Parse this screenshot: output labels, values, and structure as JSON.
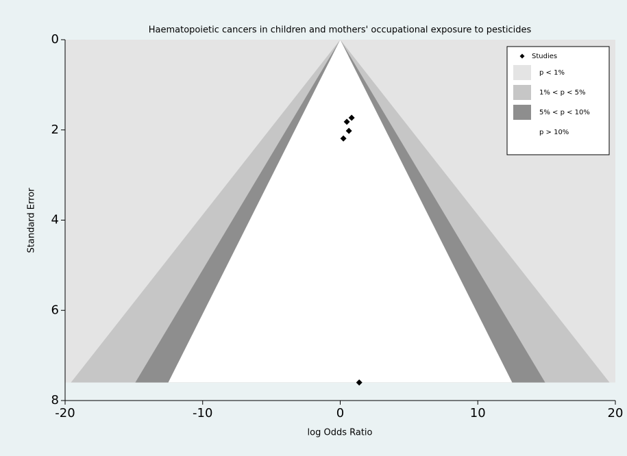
{
  "chart_data": {
    "type": "funnel",
    "title": "Haematopoietic cancers in children and mothers' occupational exposure to pesticides",
    "xlabel": "log Odds Ratio",
    "ylabel": "Standard Error",
    "xlim": [
      -20,
      20
    ],
    "ylim": [
      0,
      8
    ],
    "y_inverted": true,
    "xticks": [
      -20,
      -10,
      0,
      10,
      20
    ],
    "yticks": [
      0,
      2,
      4,
      6,
      8
    ],
    "center": 0,
    "se_max": 7.6,
    "levels": [
      1,
      5,
      10
    ],
    "contours": [
      {
        "name": "p < 1%",
        "color": "#e4e4e4"
      },
      {
        "name": "1% < p < 5%",
        "color": "#c6c6c6"
      },
      {
        "name": "5% < p < 10%",
        "color": "#8e8e8e"
      },
      {
        "name": "p > 10%",
        "color": "#ffffff"
      }
    ],
    "series": [
      {
        "name": "Studies",
        "color": "#000000",
        "x": [
          0.83,
          0.48,
          0.63,
          0.23,
          1.38
        ],
        "values": [
          1.73,
          1.82,
          2.02,
          2.19,
          7.6
        ]
      }
    ]
  }
}
